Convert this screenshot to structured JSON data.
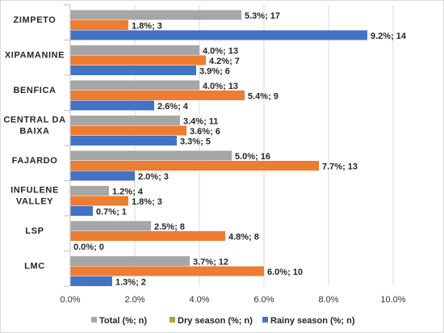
{
  "chart_data": {
    "type": "bar",
    "orientation": "horizontal",
    "categories": [
      "ZIMPETO",
      "XIPAMANINE",
      "BENFICA",
      "CENTRAL DA BAIXA",
      "FAJARDO",
      "INFULENE VALLEY",
      "LSP",
      "LMC"
    ],
    "category_lines": [
      [
        "ZIMPETO"
      ],
      [
        "XIPAMANINE"
      ],
      [
        "BENFICA"
      ],
      [
        "CENTRAL DA",
        "BAIXA"
      ],
      [
        "FAJARDO"
      ],
      [
        "INFULENE",
        "VALLEY"
      ],
      [
        "LSP"
      ],
      [
        "LMC"
      ]
    ],
    "series": [
      {
        "name": "Total (%; n)",
        "color": "#a6a6a6",
        "values": [
          5.3,
          4.0,
          4.0,
          3.4,
          5.0,
          1.2,
          2.5,
          3.7
        ],
        "labels": [
          "5.3%; 17",
          "4.0%; 13",
          "4.0%; 13",
          "3.4%; 11",
          "5.0%; 16",
          "1.2%; 4",
          "2.5%; 8",
          "3.7%; 12"
        ]
      },
      {
        "name": "Dry season (%; n)",
        "color": "#ed7d31",
        "values": [
          1.8,
          4.2,
          5.4,
          3.6,
          7.7,
          1.8,
          4.8,
          6.0
        ],
        "labels": [
          "1.8%; 3",
          "4.2%; 7",
          "5.4%; 9",
          "3.6%; 6",
          "7.7%; 13",
          "1.8%; 3",
          "4.8%; 8",
          "6.0%; 10"
        ]
      },
      {
        "name": "Rainy season (%; n)",
        "color": "#4472c4",
        "values": [
          9.2,
          3.9,
          2.6,
          3.3,
          2.0,
          0.7,
          0.0,
          1.3
        ],
        "labels": [
          "9.2%; 14",
          "3.9%; 6",
          "2.6%; 4",
          "3.3%; 5",
          "2.0%; 3",
          "0.7%; 1",
          "0.0%; 0",
          "1.3%; 2"
        ]
      }
    ],
    "xlim": [
      0,
      10
    ],
    "x_ticks": [
      "0.0%",
      "2.0%",
      "4.0%",
      "6.0%",
      "8.0%",
      "10.0%"
    ],
    "grid": "vertical",
    "legend_position": "bottom",
    "legend_swatch_colors": [
      "#a6a6a6",
      "#b5a032",
      "#4472c4"
    ]
  }
}
